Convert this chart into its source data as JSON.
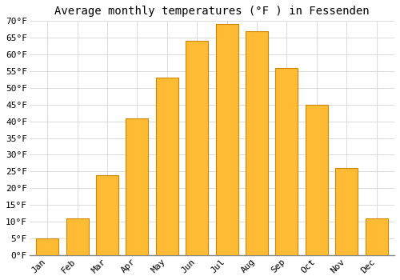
{
  "title": "Average monthly temperatures (°F ) in Fessenden",
  "months": [
    "Jan",
    "Feb",
    "Mar",
    "Apr",
    "May",
    "Jun",
    "Jul",
    "Aug",
    "Sep",
    "Oct",
    "Nov",
    "Dec"
  ],
  "values": [
    5,
    11,
    24,
    41,
    53,
    64,
    69,
    67,
    56,
    45,
    26,
    11
  ],
  "bar_color": "#FFBB33",
  "bar_edge_color": "#CC8800",
  "ylim": [
    0,
    70
  ],
  "yticks": [
    0,
    5,
    10,
    15,
    20,
    25,
    30,
    35,
    40,
    45,
    50,
    55,
    60,
    65,
    70
  ],
  "ytick_labels": [
    "0°F",
    "5°F",
    "10°F",
    "15°F",
    "20°F",
    "25°F",
    "30°F",
    "35°F",
    "40°F",
    "45°F",
    "50°F",
    "55°F",
    "60°F",
    "65°F",
    "70°F"
  ],
  "background_color": "#ffffff",
  "grid_color": "#dddddd",
  "title_fontsize": 10,
  "tick_fontsize": 8,
  "font_family": "monospace"
}
